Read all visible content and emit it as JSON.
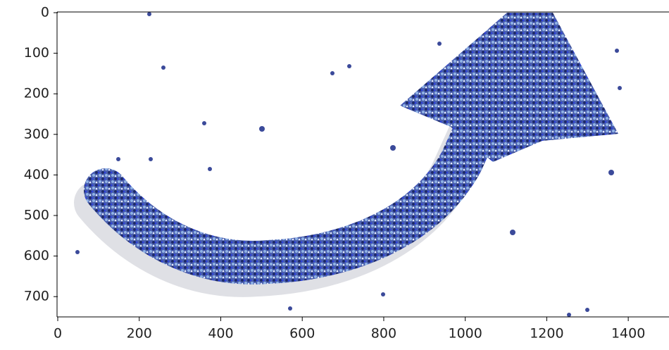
{
  "chart_data": {
    "type": "image",
    "xlim": [
      0,
      1500
    ],
    "ylim": [
      750,
      0
    ],
    "xticks": [
      0,
      200,
      400,
      600,
      800,
      1000,
      1200,
      1400
    ],
    "yticks": [
      0,
      100,
      200,
      300,
      400,
      500,
      600,
      700
    ]
  }
}
